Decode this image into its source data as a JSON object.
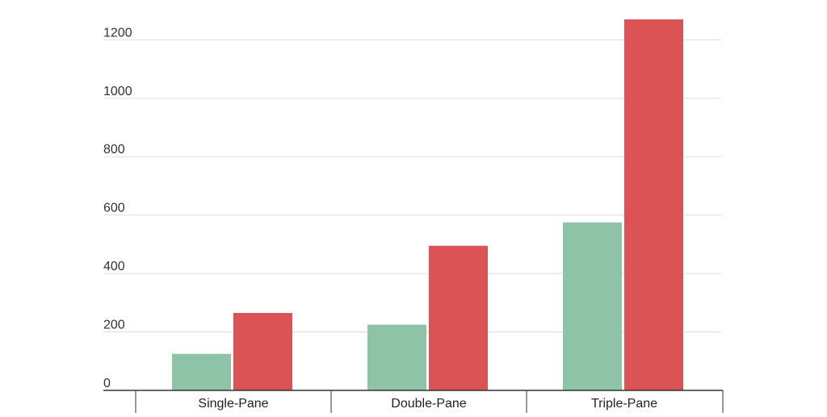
{
  "chart_data": {
    "type": "bar",
    "title": "",
    "xlabel": "",
    "ylabel": "",
    "categories": [
      "Single-Pane",
      "Double-Pane",
      "Triple-Pane"
    ],
    "series": [
      {
        "values": [
          125,
          225,
          575
        ],
        "color": "#8fc3a8"
      },
      {
        "values": [
          265,
          495,
          1270
        ],
        "color": "#dc5356"
      }
    ],
    "ylim": [
      0,
      1270
    ],
    "yticks": [
      0,
      200,
      400,
      600,
      800,
      1000,
      1200
    ],
    "grid": true,
    "legend": "none"
  }
}
